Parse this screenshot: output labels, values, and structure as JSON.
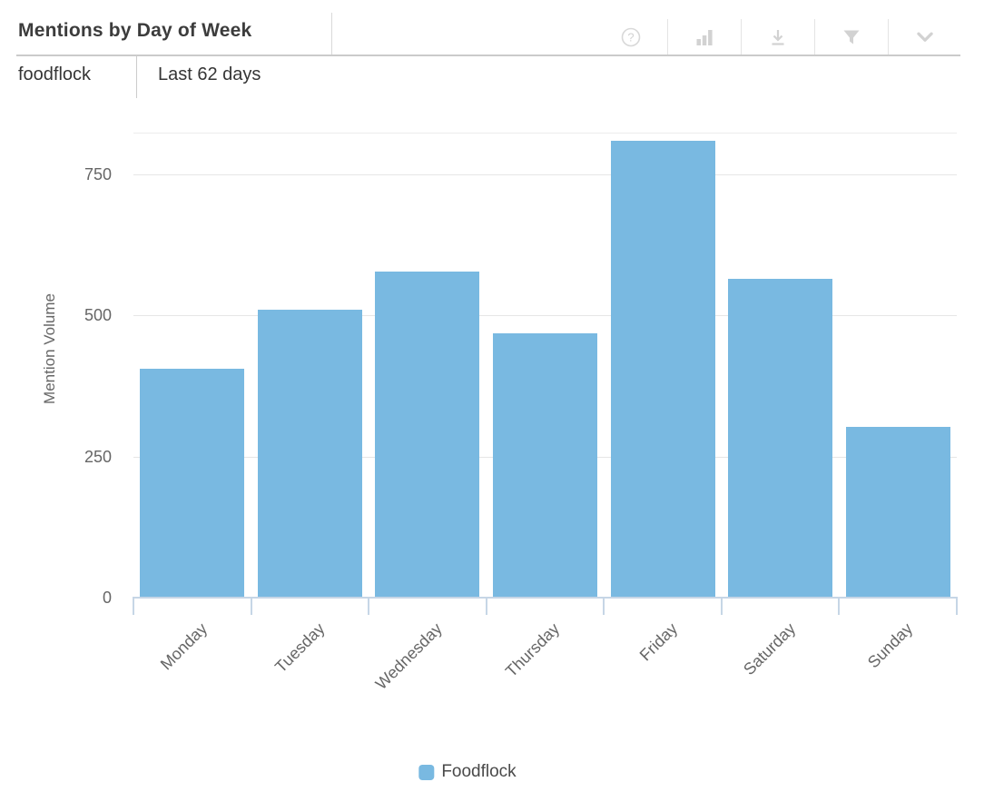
{
  "header": {
    "title": "Mentions by Day of Week",
    "query_name": "foodflock",
    "date_range": "Last 62 days",
    "toolbar_icons": [
      "help-icon",
      "chart-type-icon",
      "download-icon",
      "filter-icon",
      "chevron-down-icon"
    ]
  },
  "chart_data": {
    "type": "bar",
    "title": "Mentions by Day of Week",
    "categories": [
      "Monday",
      "Tuesday",
      "Wednesday",
      "Thursday",
      "Friday",
      "Saturday",
      "Sunday"
    ],
    "series": [
      {
        "name": "Foodflock",
        "color": "#79b9e1",
        "values": [
          405,
          510,
          578,
          468,
          808,
          565,
          302
        ]
      }
    ],
    "xlabel": "",
    "ylabel": "Mention Volume",
    "ylim": [
      0,
      825
    ],
    "yticks": [
      0,
      250,
      500,
      750
    ],
    "grid": true,
    "legend_position": "bottom-center"
  },
  "legend": {
    "items": [
      {
        "label": "Foodflock",
        "color": "#79b9e1"
      }
    ]
  },
  "colors": {
    "bar": "#79b9e1",
    "axis_line": "#c6d6e6",
    "gridline": "#e6e6e6",
    "header_border": "#cbcbcb",
    "icon": "#d2d2d2",
    "title_text": "#3c3c3c",
    "axis_text": "#666666"
  }
}
